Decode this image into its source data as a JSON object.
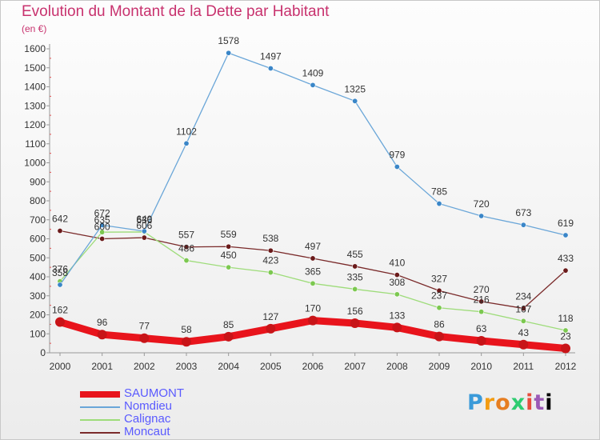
{
  "header": {
    "title": "Evolution du Montant de la Dette par Habitant",
    "subtitle": "(en €)"
  },
  "logo": {
    "text": "Proxiti"
  },
  "chart_data": {
    "type": "line",
    "title": "Evolution du Montant de la Dette par Habitant",
    "ylabel": "(en €)",
    "x": [
      "2000",
      "2001",
      "2002",
      "2003",
      "2004",
      "2005",
      "2006",
      "2007",
      "2008",
      "2009",
      "2010",
      "2011",
      "2012"
    ],
    "ylim": [
      0,
      1600
    ],
    "yticks": [
      0,
      100,
      200,
      300,
      400,
      500,
      600,
      700,
      800,
      900,
      1000,
      1100,
      1200,
      1300,
      1400,
      1500,
      1600
    ],
    "grid": false,
    "legend_position": "bottom-left",
    "series": [
      {
        "name": "SAUMONT",
        "color": "#e8141c",
        "marker": "#c81418",
        "values": [
          162,
          96,
          77,
          58,
          85,
          127,
          170,
          156,
          133,
          86,
          63,
          43,
          23
        ],
        "labels": [
          "162",
          "96",
          "77",
          "58",
          "85",
          "127",
          "170",
          "156",
          "133",
          "86",
          "63",
          "43",
          "23"
        ]
      },
      {
        "name": "Nomdieu",
        "color": "#6aa6d8",
        "marker": "#3a86c8",
        "values": [
          358,
          672,
          640,
          1102,
          1578,
          1497,
          1409,
          1325,
          979,
          785,
          720,
          673,
          619
        ],
        "labels": [
          "358",
          "672",
          "640",
          "1102",
          "1578",
          "1497",
          "1409",
          "1325",
          "979",
          "785",
          "720",
          "673",
          "619"
        ]
      },
      {
        "name": "Calignac",
        "color": "#9edc7a",
        "marker": "#7cc850",
        "values": [
          376,
          635,
          636,
          486,
          450,
          423,
          365,
          335,
          308,
          237,
          216,
          167,
          118
        ],
        "labels": [
          "376",
          "635",
          "636",
          "486",
          "450",
          "423",
          "365",
          "335",
          "308",
          "237",
          "216",
          "167",
          "118"
        ]
      },
      {
        "name": "Moncaut",
        "color": "#7a2a2a",
        "marker": "#6a1a1a",
        "values": [
          642,
          600,
          606,
          557,
          559,
          538,
          497,
          455,
          410,
          327,
          270,
          234,
          433
        ],
        "labels": [
          "642",
          "600",
          "606",
          "557",
          "559",
          "538",
          "497",
          "455",
          "410",
          "327",
          "270",
          "234",
          "433"
        ]
      }
    ]
  }
}
